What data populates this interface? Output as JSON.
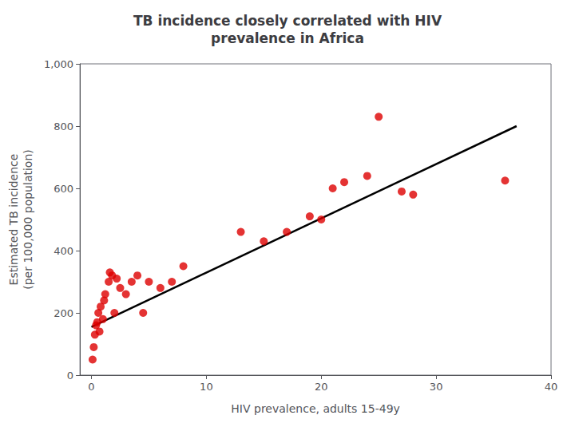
{
  "chart_data": {
    "type": "scatter",
    "title": "TB incidence closely correlated with HIV\nprevalence in Africa",
    "xlabel": "HIV prevalence, adults 15-49y",
    "ylabel": "Estimated TB incidence\n(per 100,000 population)",
    "xlim": [
      -1,
      40
    ],
    "ylim": [
      0,
      1000
    ],
    "xticks": [
      0,
      10,
      20,
      30,
      40
    ],
    "yticks": [
      0,
      200,
      400,
      600,
      800,
      1000
    ],
    "grid": false,
    "series": [
      {
        "type": "line",
        "color": "#000000",
        "x": [
          0,
          37
        ],
        "values": [
          155,
          800
        ]
      },
      {
        "type": "scatter",
        "color": "#dd0000",
        "x": [
          0.1,
          0.2,
          0.3,
          0.4,
          0.5,
          0.6,
          0.7,
          0.8,
          1.0,
          1.1,
          1.2,
          1.5,
          1.6,
          1.8,
          2.0,
          2.2,
          2.5,
          3.0,
          3.5,
          4.0,
          4.5,
          5.0,
          6.0,
          7.0,
          8.0,
          13.0,
          15.0,
          17.0,
          19.0,
          20.0,
          21.0,
          22.0,
          24.0,
          25.0,
          27.0,
          28.0,
          36.0
        ],
        "values": [
          50,
          90,
          130,
          160,
          170,
          200,
          140,
          220,
          180,
          240,
          260,
          300,
          330,
          320,
          200,
          310,
          280,
          260,
          300,
          320,
          200,
          300,
          280,
          300,
          350,
          460,
          430,
          460,
          510,
          500,
          600,
          620,
          640,
          830,
          590,
          580,
          625
        ]
      }
    ]
  }
}
